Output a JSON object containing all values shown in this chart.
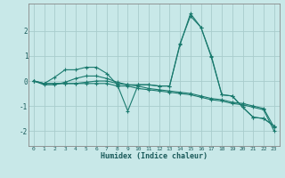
{
  "xlabel": "Humidex (Indice chaleur)",
  "background_color": "#c8e8e8",
  "grid_color": "#a8cccc",
  "line_color": "#1a7a6e",
  "xlim": [
    -0.5,
    23.5
  ],
  "ylim": [
    -2.6,
    3.1
  ],
  "yticks": [
    -2,
    -1,
    0,
    1,
    2
  ],
  "xticks": [
    0,
    1,
    2,
    3,
    4,
    5,
    6,
    7,
    8,
    9,
    10,
    11,
    12,
    13,
    14,
    15,
    16,
    17,
    18,
    19,
    20,
    21,
    22,
    23
  ],
  "series": [
    [
      0.0,
      -0.1,
      0.15,
      0.45,
      0.45,
      0.55,
      0.55,
      0.3,
      -0.15,
      -1.2,
      -0.15,
      -0.15,
      -0.2,
      -0.2,
      1.5,
      2.6,
      2.15,
      1.0,
      -0.55,
      -0.6,
      -1.05,
      -1.45,
      -1.5,
      -1.8
    ],
    [
      0.0,
      -0.15,
      -0.15,
      -0.05,
      0.1,
      0.2,
      0.2,
      0.1,
      -0.05,
      -0.15,
      -0.15,
      -0.15,
      -0.2,
      -0.2,
      1.45,
      2.7,
      2.15,
      0.95,
      -0.55,
      -0.6,
      -1.05,
      -1.45,
      -1.5,
      -1.8
    ],
    [
      0.0,
      -0.1,
      -0.1,
      -0.1,
      -0.1,
      -0.05,
      0.0,
      0.0,
      -0.1,
      -0.15,
      -0.2,
      -0.3,
      -0.35,
      -0.4,
      -0.45,
      -0.5,
      -0.6,
      -0.7,
      -0.75,
      -0.85,
      -0.9,
      -1.0,
      -1.1,
      -1.85
    ],
    [
      0.0,
      -0.1,
      -0.1,
      -0.1,
      -0.1,
      -0.1,
      -0.1,
      -0.1,
      -0.2,
      -0.2,
      -0.3,
      -0.35,
      -0.4,
      -0.45,
      -0.5,
      -0.55,
      -0.65,
      -0.75,
      -0.8,
      -0.9,
      -0.95,
      -1.05,
      -1.15,
      -2.0
    ]
  ]
}
